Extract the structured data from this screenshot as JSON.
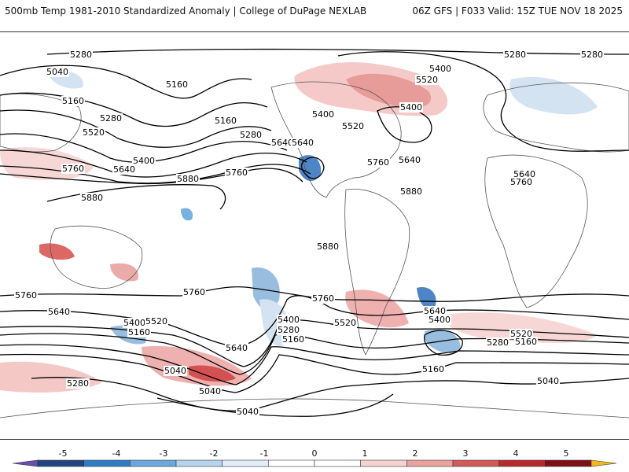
{
  "header": {
    "left_title": "500mb Temp 1981-2010 Standardized Anomaly | College of DuPage NEXLAB",
    "right_title": "06Z GFS | F033 Valid: 15Z TUE NOV 18 2025"
  },
  "colors": {
    "contour": "#000000",
    "warm_light": "#f6d3d1",
    "warm_mid": "#e89a99",
    "warm_strong": "#cf3f3f",
    "cool_light": "#cfe0f0",
    "cool_mid": "#8fb6dc",
    "cool_strong": "#3a78c0",
    "land_outline": "#555555"
  },
  "contour_labels": [
    {
      "text": "5280"
    },
    {
      "text": "5040"
    },
    {
      "text": "5160"
    },
    {
      "text": "5160"
    },
    {
      "text": "5280"
    },
    {
      "text": "5520"
    },
    {
      "text": "5400"
    },
    {
      "text": "5160"
    },
    {
      "text": "5280"
    },
    {
      "text": "5640"
    },
    {
      "text": "5760"
    },
    {
      "text": "5880"
    },
    {
      "text": "5640"
    },
    {
      "text": "5760"
    },
    {
      "text": "5880"
    },
    {
      "text": "5400"
    },
    {
      "text": "5520"
    },
    {
      "text": "5640"
    },
    {
      "text": "5400"
    },
    {
      "text": "5520"
    },
    {
      "text": "5760"
    },
    {
      "text": "5640"
    },
    {
      "text": "5880"
    },
    {
      "text": "5880"
    },
    {
      "text": "5280"
    },
    {
      "text": "5400"
    },
    {
      "text": "5280"
    },
    {
      "text": "5640"
    },
    {
      "text": "5760"
    },
    {
      "text": "5760"
    },
    {
      "text": "5640"
    },
    {
      "text": "5400"
    },
    {
      "text": "5520"
    },
    {
      "text": "5160"
    },
    {
      "text": "5640"
    },
    {
      "text": "5760"
    },
    {
      "text": "5400"
    },
    {
      "text": "5280"
    },
    {
      "text": "5160"
    },
    {
      "text": "5040"
    },
    {
      "text": "5280"
    },
    {
      "text": "5040"
    },
    {
      "text": "5040"
    },
    {
      "text": "5520"
    },
    {
      "text": "5760"
    },
    {
      "text": "5640"
    },
    {
      "text": "5400"
    },
    {
      "text": "5520"
    },
    {
      "text": "5160"
    },
    {
      "text": "5280"
    },
    {
      "text": "5160"
    },
    {
      "text": "5040"
    }
  ],
  "legend": {
    "ticks": [
      "-5",
      "-4",
      "-3",
      "-2",
      "-1",
      "0",
      "1",
      "2",
      "3",
      "4",
      "5"
    ],
    "bins": [
      "#6a4fb0",
      "#23457f",
      "#2f7cc6",
      "#6aa8dd",
      "#b7d3ee",
      "#e4eef8",
      "#ffffff",
      "#ffffff",
      "#f6d3d1",
      "#eaa29f",
      "#d45a58",
      "#b8292d",
      "#7f1016",
      "#f2b81b"
    ]
  }
}
